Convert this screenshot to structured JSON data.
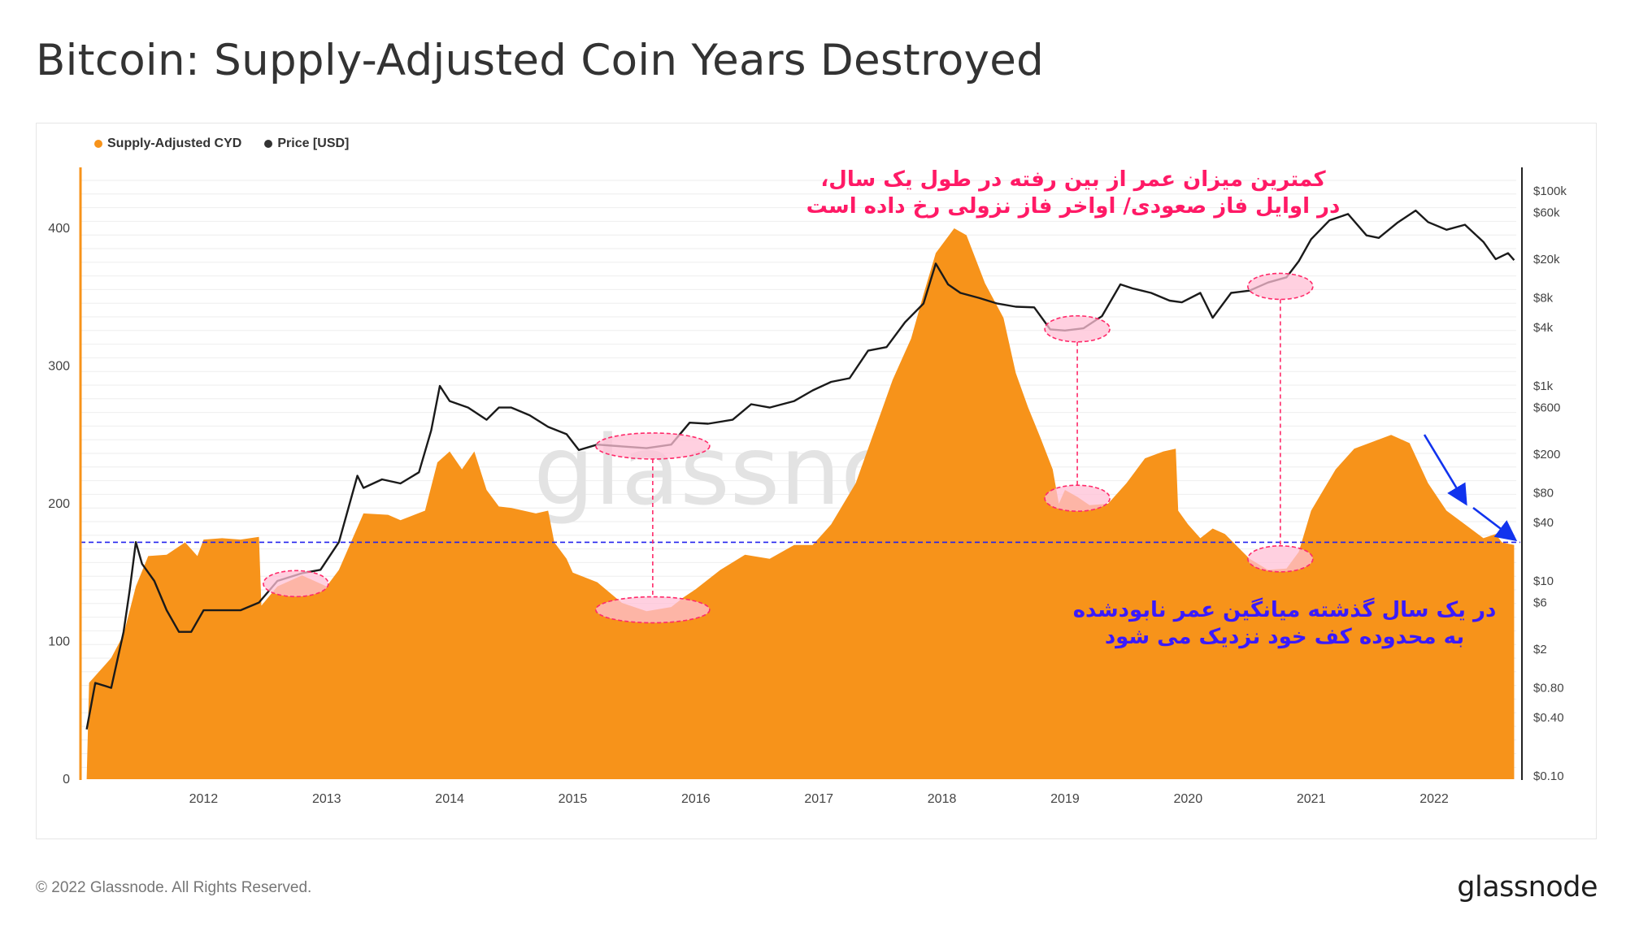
{
  "title": "Bitcoin: Supply-Adjusted Coin Years Destroyed",
  "legend": [
    {
      "label": "Supply-Adjusted CYD",
      "color": "#f7931a"
    },
    {
      "label": "Price [USD]",
      "color": "#333333"
    }
  ],
  "annotations": {
    "top_line1": "کمترین میزان عمر از بین رفته در طول یک سال،",
    "top_line2": "در اوایل فاز صعودی/ اواخر فاز نزولی رخ داده است",
    "bottom_line1": "در یک سال گذشته میانگین عمر نابودشده",
    "bottom_line2": "به محدوده کف خود نزدیک می شود"
  },
  "footer": {
    "copyright": "© 2022 Glassnode. All Rights Reserved.",
    "brand": "glassnode"
  },
  "watermark": "glassnode",
  "colors": {
    "cyd": "#f7931a",
    "price": "#1a1a1a",
    "threshold": "#2222ee",
    "highlight": "#ff2a6a",
    "arrow": "#1133ee"
  },
  "chart_data": {
    "type": "area",
    "x_ticks": [
      "2012",
      "2013",
      "2014",
      "2015",
      "2016",
      "2017",
      "2018",
      "2019",
      "2020",
      "2021",
      "2022"
    ],
    "y_left_ticks": [
      "0",
      "100",
      "200",
      "300",
      "400"
    ],
    "y_left_range": [
      0,
      460
    ],
    "y_right_scale": "log",
    "y_right_ticks": [
      "$0.10",
      "$0.40",
      "$0.80",
      "$2",
      "$6",
      "$10",
      "$40",
      "$80",
      "$200",
      "$600",
      "$1k",
      "$4k",
      "$8k",
      "$20k",
      "$60k",
      "$100k"
    ],
    "y_right_tick_values": [
      0.1,
      0.4,
      0.8,
      2,
      6,
      10,
      40,
      80,
      200,
      600,
      1000,
      4000,
      8000,
      20000,
      60000,
      100000
    ],
    "threshold_cyd": 172,
    "series": [
      {
        "name": "Supply-Adjusted CYD",
        "axis": "left",
        "points": [
          [
            2011.05,
            0
          ],
          [
            2011.07,
            70
          ],
          [
            2011.15,
            78
          ],
          [
            2011.25,
            88
          ],
          [
            2011.35,
            105
          ],
          [
            2011.45,
            140
          ],
          [
            2011.55,
            162
          ],
          [
            2011.7,
            163
          ],
          [
            2011.85,
            172
          ],
          [
            2011.95,
            162
          ],
          [
            2012.0,
            174
          ],
          [
            2012.15,
            175
          ],
          [
            2012.3,
            174
          ],
          [
            2012.45,
            176
          ],
          [
            2012.47,
            126
          ],
          [
            2012.6,
            140
          ],
          [
            2012.8,
            148
          ],
          [
            2013.0,
            140
          ],
          [
            2013.1,
            152
          ],
          [
            2013.3,
            193
          ],
          [
            2013.5,
            192
          ],
          [
            2013.6,
            188
          ],
          [
            2013.8,
            195
          ],
          [
            2013.9,
            230
          ],
          [
            2014.0,
            238
          ],
          [
            2014.1,
            225
          ],
          [
            2014.2,
            238
          ],
          [
            2014.3,
            210
          ],
          [
            2014.4,
            198
          ],
          [
            2014.5,
            197
          ],
          [
            2014.7,
            193
          ],
          [
            2014.8,
            195
          ],
          [
            2014.85,
            172
          ],
          [
            2014.95,
            160
          ],
          [
            2015.0,
            150
          ],
          [
            2015.2,
            143
          ],
          [
            2015.4,
            128
          ],
          [
            2015.6,
            122
          ],
          [
            2015.8,
            125
          ],
          [
            2015.9,
            132
          ],
          [
            2016.0,
            138
          ],
          [
            2016.2,
            152
          ],
          [
            2016.4,
            163
          ],
          [
            2016.6,
            160
          ],
          [
            2016.8,
            170
          ],
          [
            2016.95,
            170
          ],
          [
            2017.1,
            185
          ],
          [
            2017.3,
            215
          ],
          [
            2017.5,
            265
          ],
          [
            2017.6,
            290
          ],
          [
            2017.75,
            320
          ],
          [
            2017.85,
            352
          ],
          [
            2017.95,
            382
          ],
          [
            2018.1,
            400
          ],
          [
            2018.2,
            395
          ],
          [
            2018.35,
            360
          ],
          [
            2018.5,
            335
          ],
          [
            2018.6,
            295
          ],
          [
            2018.7,
            270
          ],
          [
            2018.8,
            248
          ],
          [
            2018.9,
            225
          ],
          [
            2018.95,
            200
          ],
          [
            2019.0,
            210
          ],
          [
            2019.1,
            205
          ],
          [
            2019.2,
            199
          ],
          [
            2019.35,
            200
          ],
          [
            2019.5,
            215
          ],
          [
            2019.65,
            233
          ],
          [
            2019.8,
            238
          ],
          [
            2019.9,
            240
          ],
          [
            2019.92,
            195
          ],
          [
            2020.0,
            185
          ],
          [
            2020.1,
            175
          ],
          [
            2020.2,
            182
          ],
          [
            2020.3,
            178
          ],
          [
            2020.5,
            160
          ],
          [
            2020.65,
            152
          ],
          [
            2020.8,
            153
          ],
          [
            2020.9,
            165
          ],
          [
            2021.0,
            195
          ],
          [
            2021.1,
            210
          ],
          [
            2021.2,
            225
          ],
          [
            2021.35,
            240
          ],
          [
            2021.5,
            245
          ],
          [
            2021.65,
            250
          ],
          [
            2021.8,
            244
          ],
          [
            2021.95,
            215
          ],
          [
            2022.1,
            195
          ],
          [
            2022.25,
            185
          ],
          [
            2022.4,
            175
          ],
          [
            2022.5,
            178
          ],
          [
            2022.55,
            172
          ],
          [
            2022.65,
            170
          ]
        ]
      },
      {
        "name": "Price [USD]",
        "axis": "right",
        "points": [
          [
            2011.05,
            0.3
          ],
          [
            2011.12,
            0.9
          ],
          [
            2011.25,
            0.8
          ],
          [
            2011.35,
            3
          ],
          [
            2011.4,
            8
          ],
          [
            2011.45,
            25
          ],
          [
            2011.5,
            15
          ],
          [
            2011.6,
            10
          ],
          [
            2011.7,
            5
          ],
          [
            2011.8,
            3
          ],
          [
            2011.9,
            3
          ],
          [
            2012.0,
            5
          ],
          [
            2012.15,
            5
          ],
          [
            2012.3,
            5
          ],
          [
            2012.45,
            6
          ],
          [
            2012.6,
            10
          ],
          [
            2012.8,
            12
          ],
          [
            2012.95,
            13
          ],
          [
            2013.1,
            25
          ],
          [
            2013.25,
            120
          ],
          [
            2013.3,
            90
          ],
          [
            2013.45,
            110
          ],
          [
            2013.6,
            100
          ],
          [
            2013.75,
            130
          ],
          [
            2013.85,
            350
          ],
          [
            2013.92,
            1000
          ],
          [
            2014.0,
            700
          ],
          [
            2014.15,
            600
          ],
          [
            2014.3,
            450
          ],
          [
            2014.4,
            600
          ],
          [
            2014.5,
            600
          ],
          [
            2014.65,
            500
          ],
          [
            2014.8,
            380
          ],
          [
            2014.95,
            320
          ],
          [
            2015.05,
            220
          ],
          [
            2015.2,
            250
          ],
          [
            2015.4,
            240
          ],
          [
            2015.6,
            230
          ],
          [
            2015.8,
            250
          ],
          [
            2015.95,
            420
          ],
          [
            2016.1,
            410
          ],
          [
            2016.3,
            450
          ],
          [
            2016.45,
            650
          ],
          [
            2016.6,
            600
          ],
          [
            2016.8,
            700
          ],
          [
            2016.95,
            900
          ],
          [
            2017.1,
            1100
          ],
          [
            2017.25,
            1200
          ],
          [
            2017.4,
            2300
          ],
          [
            2017.55,
            2500
          ],
          [
            2017.7,
            4500
          ],
          [
            2017.85,
            7000
          ],
          [
            2017.95,
            18000
          ],
          [
            2018.05,
            11000
          ],
          [
            2018.15,
            9000
          ],
          [
            2018.3,
            8000
          ],
          [
            2018.45,
            7000
          ],
          [
            2018.6,
            6500
          ],
          [
            2018.75,
            6400
          ],
          [
            2018.88,
            3800
          ],
          [
            2019.0,
            3700
          ],
          [
            2019.15,
            3900
          ],
          [
            2019.3,
            5200
          ],
          [
            2019.45,
            11000
          ],
          [
            2019.55,
            10000
          ],
          [
            2019.7,
            9000
          ],
          [
            2019.85,
            7500
          ],
          [
            2019.95,
            7200
          ],
          [
            2020.1,
            9000
          ],
          [
            2020.2,
            5000
          ],
          [
            2020.35,
            9000
          ],
          [
            2020.5,
            9500
          ],
          [
            2020.65,
            11500
          ],
          [
            2020.8,
            13000
          ],
          [
            2020.9,
            19000
          ],
          [
            2021.0,
            32000
          ],
          [
            2021.15,
            50000
          ],
          [
            2021.3,
            58000
          ],
          [
            2021.45,
            35000
          ],
          [
            2021.55,
            33000
          ],
          [
            2021.7,
            47000
          ],
          [
            2021.85,
            63000
          ],
          [
            2021.95,
            48000
          ],
          [
            2022.1,
            40000
          ],
          [
            2022.25,
            45000
          ],
          [
            2022.4,
            30000
          ],
          [
            2022.5,
            20000
          ],
          [
            2022.6,
            23000
          ],
          [
            2022.65,
            19500
          ]
        ]
      }
    ]
  }
}
